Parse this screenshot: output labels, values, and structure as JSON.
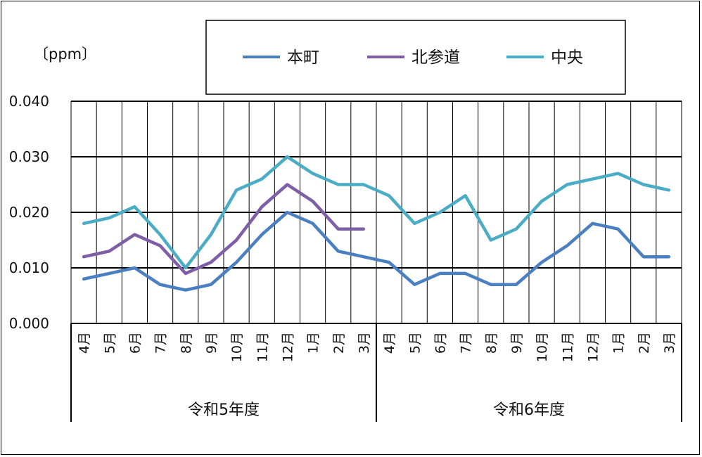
{
  "chart_data": {
    "type": "line",
    "unit_label": "〔ppm〕",
    "ylim": [
      0,
      0.04
    ],
    "y_ticks": [
      "0.000",
      "0.010",
      "0.020",
      "0.030",
      "0.040"
    ],
    "grid": "horizontal and vertical",
    "legend_position": "top",
    "categories": [
      "4月",
      "5月",
      "6月",
      "7月",
      "8月",
      "9月",
      "10月",
      "11月",
      "12月",
      "1月",
      "2月",
      "3月",
      "4月",
      "5月",
      "6月",
      "7月",
      "8月",
      "9月",
      "10月",
      "11月",
      "12月",
      "1月",
      "2月",
      "3月"
    ],
    "groups": [
      {
        "label": "令和5年度",
        "start": 0,
        "end": 11
      },
      {
        "label": "令和6年度",
        "start": 12,
        "end": 23
      }
    ],
    "series": [
      {
        "name": "本町",
        "color": "#4a7fc1",
        "values": [
          0.008,
          0.009,
          0.01,
          0.007,
          0.006,
          0.007,
          0.011,
          0.016,
          0.02,
          0.018,
          0.013,
          0.012,
          0.011,
          0.007,
          0.009,
          0.009,
          0.007,
          0.007,
          0.011,
          0.014,
          0.018,
          0.017,
          0.012,
          0.012
        ]
      },
      {
        "name": "北参道",
        "color": "#7e5ea6",
        "values": [
          0.012,
          0.013,
          0.016,
          0.014,
          0.009,
          0.011,
          0.015,
          0.021,
          0.025,
          0.022,
          0.017,
          0.017,
          null,
          null,
          null,
          null,
          null,
          null,
          null,
          null,
          null,
          null,
          null,
          null
        ]
      },
      {
        "name": "中央",
        "color": "#4bacc6",
        "values": [
          0.018,
          0.019,
          0.021,
          0.016,
          0.01,
          0.016,
          0.024,
          0.026,
          0.03,
          0.027,
          0.025,
          0.025,
          0.023,
          0.018,
          0.02,
          0.023,
          0.015,
          0.017,
          0.022,
          0.025,
          0.026,
          0.027,
          0.025,
          0.024
        ]
      }
    ]
  }
}
